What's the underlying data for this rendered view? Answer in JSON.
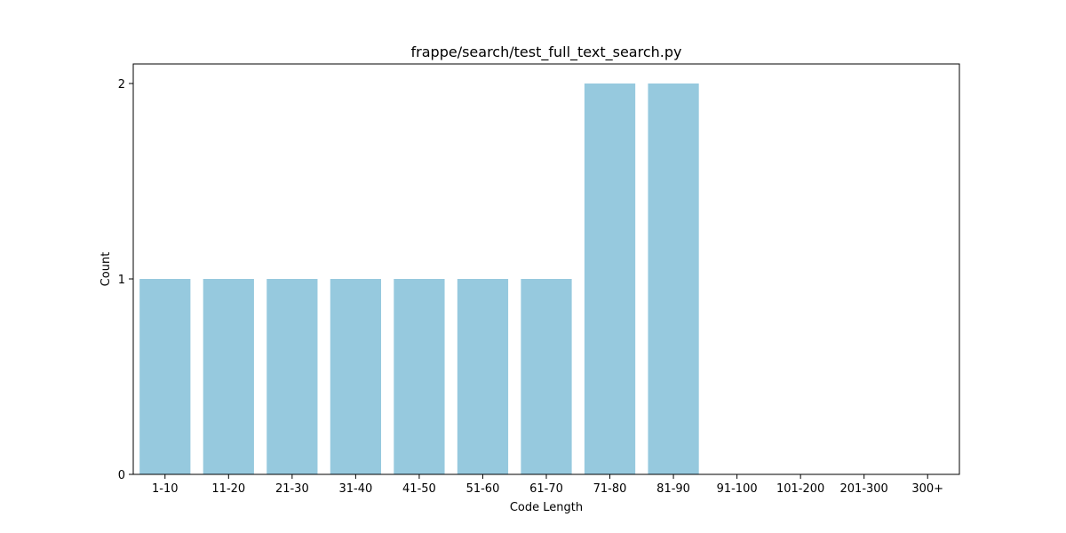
{
  "chart_data": {
    "type": "bar",
    "title": "frappe/search/test_full_text_search.py",
    "xlabel": "Code Length",
    "ylabel": "Count",
    "categories": [
      "1-10",
      "11-20",
      "21-30",
      "31-40",
      "41-50",
      "51-60",
      "61-70",
      "71-80",
      "81-90",
      "91-100",
      "101-200",
      "201-300",
      "300+"
    ],
    "values": [
      1,
      1,
      1,
      1,
      1,
      1,
      1,
      2,
      2,
      0,
      0,
      0,
      0
    ],
    "ylim": [
      0,
      2.1
    ],
    "yticks": [
      0,
      1,
      2
    ],
    "bar_color": "#96c9de",
    "grid": false,
    "legend": "none"
  }
}
